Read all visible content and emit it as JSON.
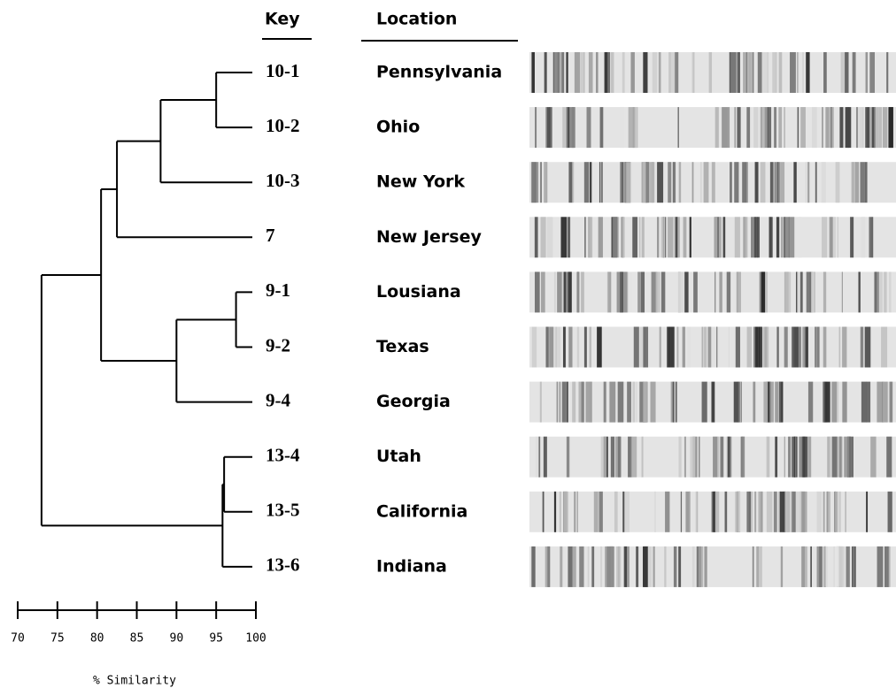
{
  "header": {
    "key": "Key",
    "location": "Location"
  },
  "axis": {
    "label": "% Similarity",
    "xlim": [
      70,
      100
    ],
    "xticks": [
      70,
      75,
      80,
      85,
      90,
      95,
      100
    ]
  },
  "tree": {
    "similarity": 73,
    "children": [
      {
        "similarity": 80.5,
        "children": [
          {
            "similarity": 82.5,
            "children": [
              {
                "similarity": 88,
                "children": [
                  {
                    "similarity": 95,
                    "children": [
                      {
                        "key": "10-1",
                        "location": "Pennsylvania"
                      },
                      {
                        "key": "10-2",
                        "location": "Ohio"
                      }
                    ]
                  },
                  {
                    "key": "10-3",
                    "location": "New York"
                  }
                ]
              },
              {
                "key": "7",
                "location": "New Jersey"
              }
            ]
          },
          {
            "similarity": 90,
            "children": [
              {
                "similarity": 97.5,
                "children": [
                  {
                    "key": "9-1",
                    "location": "Lousiana"
                  },
                  {
                    "key": "9-2",
                    "location": "Texas"
                  }
                ]
              },
              {
                "key": "9-4",
                "location": "Georgia"
              }
            ]
          }
        ]
      },
      {
        "similarity": 95.8,
        "children": [
          {
            "similarity": 96,
            "children": [
              {
                "key": "13-4",
                "location": "Utah"
              },
              {
                "key": "13-5",
                "location": "California"
              }
            ]
          },
          {
            "key": "13-6",
            "location": "Indiana"
          }
        ]
      }
    ]
  }
}
